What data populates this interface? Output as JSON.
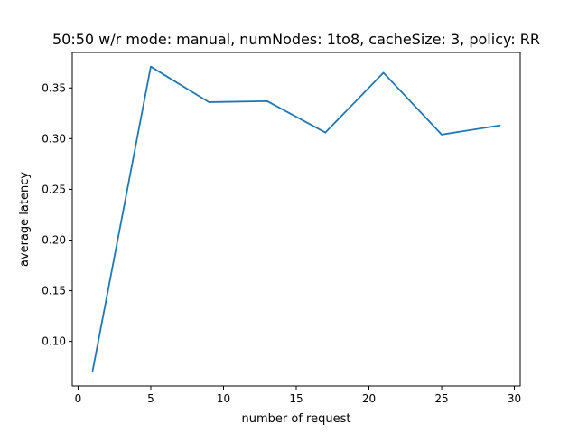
{
  "chart_data": {
    "type": "line",
    "title": "50:50 w/r mode: manual, numNodes: 1to8, cacheSize: 3, policy: RR",
    "xlabel": "number of request",
    "ylabel": "average latency",
    "xlim": [
      -0.4,
      30.4
    ],
    "ylim": [
      0.056,
      0.385
    ],
    "x_ticks": [
      0,
      5,
      10,
      15,
      20,
      25,
      30
    ],
    "x_tick_labels": [
      "0",
      "5",
      "10",
      "15",
      "20",
      "25",
      "30"
    ],
    "y_ticks": [
      0.1,
      0.15,
      0.2,
      0.25,
      0.3,
      0.35
    ],
    "y_tick_labels": [
      "0.10",
      "0.15",
      "0.20",
      "0.25",
      "0.30",
      "0.35"
    ],
    "grid": false,
    "series": [
      {
        "color": "#1f77b4",
        "x": [
          1,
          5,
          9,
          13,
          17,
          21,
          25,
          29
        ],
        "y": [
          0.071,
          0.371,
          0.336,
          0.337,
          0.306,
          0.365,
          0.304,
          0.313
        ]
      }
    ]
  }
}
